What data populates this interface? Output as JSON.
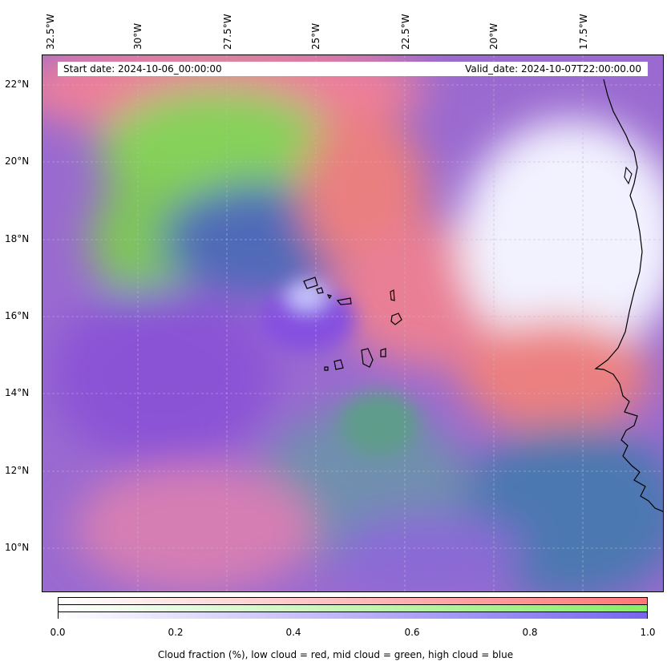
{
  "map": {
    "lon_labels": [
      "32.5°W",
      "30°W",
      "27.5°W",
      "25°W",
      "22.5°W",
      "20°W",
      "17.5°W"
    ],
    "lat_labels": [
      "22°N",
      "20°N",
      "18°N",
      "16°N",
      "14°N",
      "12°N",
      "10°N"
    ],
    "start_date": "Start date: 2024-10-06_00:00:00",
    "valid_date": "Valid_date: 2024-10-07T22:00:00.00"
  },
  "colorbar": {
    "ticks": [
      "0.0",
      "0.2",
      "0.4",
      "0.6",
      "0.8",
      "1.0"
    ],
    "label": "Cloud fraction (%), low cloud = red, mid cloud = green, high cloud = blue",
    "colors": {
      "low": "#ff7777",
      "mid": "#88ee66",
      "high": "#7766ee"
    }
  }
}
